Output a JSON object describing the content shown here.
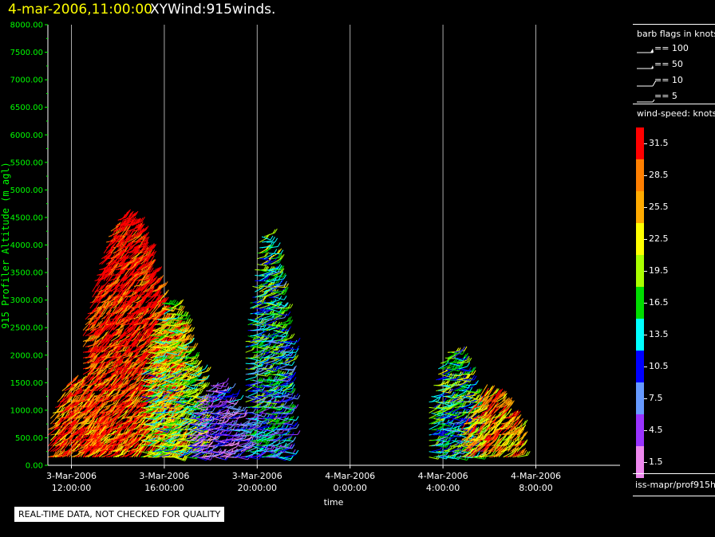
{
  "header": {
    "date": "4-mar-2006,11:00:00",
    "name": "XYWind:915winds."
  },
  "legend": {
    "barb_title": "barb flags in knots",
    "barbs": [
      {
        "label": "== 100",
        "icon": "barb-pennant-icon"
      },
      {
        "label": "== 50",
        "icon": "barb-flag-icon"
      },
      {
        "label": "== 10",
        "icon": "barb-full-icon"
      },
      {
        "label": "== 5",
        "icon": "barb-half-icon"
      }
    ],
    "speed_title": "wind-speed: knots",
    "speed_scale": [
      {
        "label": "31.5",
        "color": "#ff0000"
      },
      {
        "label": "28.5",
        "color": "#ff7f00"
      },
      {
        "label": "25.5",
        "color": "#ffaa00"
      },
      {
        "label": "22.5",
        "color": "#ffff00"
      },
      {
        "label": "19.5",
        "color": "#aaff00"
      },
      {
        "label": "16.5",
        "color": "#00dd00"
      },
      {
        "label": "13.5",
        "color": "#00ffff"
      },
      {
        "label": "10.5",
        "color": "#0000ff"
      },
      {
        "label": "7.5",
        "color": "#6699ff"
      },
      {
        "label": "4.5",
        "color": "#9933ff"
      },
      {
        "label": "1.5",
        "color": "#ee88ee"
      }
    ],
    "footer": "iss-mapr/prof915h"
  },
  "notice": "REAL-TIME DATA, NOT CHECKED FOR QUALITY",
  "chart_data": {
    "type": "scatter",
    "ylabel": "915 Profiler Altitude (m agl)",
    "xlabel": "time",
    "y_ticks": [
      "0.00",
      "500.00",
      "1000.00",
      "1500.00",
      "2000.00",
      "2500.00",
      "3000.00",
      "3500.00",
      "4000.00",
      "4500.00",
      "5000.00",
      "5500.00",
      "6000.00",
      "6500.00",
      "7000.00",
      "7500.00",
      "8000.00"
    ],
    "ylim": [
      0,
      8000
    ],
    "xlim_hours": [
      10.5,
      22
    ],
    "x_ticks": [
      {
        "date": "3-Mar-2006",
        "time": "12:00:00",
        "hours": 12
      },
      {
        "date": "3-Mar-2006",
        "time": "16:00:00",
        "hours": 16
      },
      {
        "date": "3-Mar-2006",
        "time": "20:00:00",
        "hours": 20
      },
      {
        "date": "4-Mar-2006",
        "time": "0:00:00",
        "hours": 24
      },
      {
        "date": "4-Mar-2006",
        "time": "4:00:00",
        "hours": 28
      },
      {
        "date": "4-Mar-2006",
        "time": "8:00:00",
        "hours": 32
      }
    ],
    "x_range_hours": [
      11,
      35
    ],
    "grid": true,
    "clusters": [
      {
        "t_start": 11,
        "t_end": 13.2,
        "alt_top": 1500,
        "dominant_speed": 31.5
      },
      {
        "t_start": 12.5,
        "t_end": 16.5,
        "alt_top": 4500,
        "dominant_speed": 31.5
      },
      {
        "t_start": 15,
        "t_end": 17.5,
        "alt_top": 3000,
        "dominant_speed": 19.5
      },
      {
        "t_start": 17,
        "t_end": 19.5,
        "alt_top": 1500,
        "dominant_speed": 7.5
      },
      {
        "t_start": 19.5,
        "t_end": 21.3,
        "alt_top": 4200,
        "dominant_speed": 13.5
      },
      {
        "t_start": 27.4,
        "t_end": 29.5,
        "alt_top": 2100,
        "dominant_speed": 16.5
      },
      {
        "t_start": 28.8,
        "t_end": 31.3,
        "alt_top": 1300,
        "dominant_speed": 28.5
      }
    ]
  }
}
